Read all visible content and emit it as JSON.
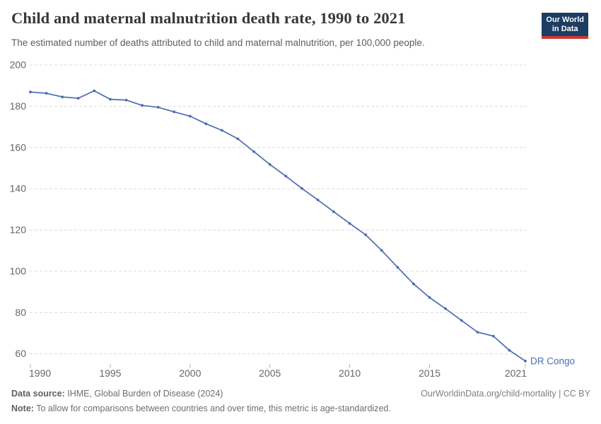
{
  "header": {
    "title": "Child and maternal malnutrition death rate, 1990 to 2021",
    "subtitle": "The estimated number of deaths attributed to child and maternal malnutrition, per 100,000 people.",
    "logo": {
      "line1": "Our World",
      "line2": "in Data",
      "bg_color": "#1d3d63",
      "bar_color": "#cc3b2f"
    }
  },
  "chart_data": {
    "type": "line",
    "title": "Child and maternal malnutrition death rate, 1990 to 2021",
    "subtitle": "The estimated number of deaths attributed to child and maternal malnutrition, per 100,000 people.",
    "xlabel": "",
    "ylabel": "",
    "x": [
      1990,
      1991,
      1992,
      1993,
      1994,
      1995,
      1996,
      1997,
      1998,
      1999,
      2000,
      2001,
      2002,
      2003,
      2004,
      2005,
      2006,
      2007,
      2008,
      2009,
      2010,
      2011,
      2012,
      2013,
      2014,
      2015,
      2016,
      2017,
      2018,
      2019,
      2020,
      2021
    ],
    "series": [
      {
        "name": "DR Congo",
        "color": "#4c6cb3",
        "values": [
          186.9,
          186.3,
          184.5,
          183.9,
          187.5,
          183.4,
          183.0,
          180.4,
          179.5,
          177.3,
          175.2,
          171.5,
          168.3,
          164.2,
          158.0,
          151.8,
          146.1,
          140.2,
          134.6,
          128.9,
          123.2,
          117.7,
          110.1,
          101.9,
          93.9,
          87.3,
          81.9,
          76.2,
          70.5,
          68.6,
          61.7,
          56.5
        ]
      }
    ],
    "x_ticks": [
      1990,
      1995,
      2000,
      2005,
      2010,
      2015,
      2021
    ],
    "y_ticks": [
      60,
      80,
      100,
      120,
      140,
      160,
      180,
      200
    ],
    "xlim": [
      1990,
      2021
    ],
    "ylim": [
      60,
      200
    ],
    "grid": "horizontal-dashed",
    "legend_position": "end-of-line-label",
    "end_label": "DR Congo",
    "axis_text_color": "#666666",
    "gridline_color": "#dcdcdc"
  },
  "footer": {
    "data_source_label": "Data source:",
    "data_source_text": "IHME, Global Burden of Disease (2024)",
    "right_text": "OurWorldinData.org/child-mortality | CC BY",
    "note_label": "Note:",
    "note_text": "To allow for comparisons between countries and over time, this metric is age-standardized."
  }
}
